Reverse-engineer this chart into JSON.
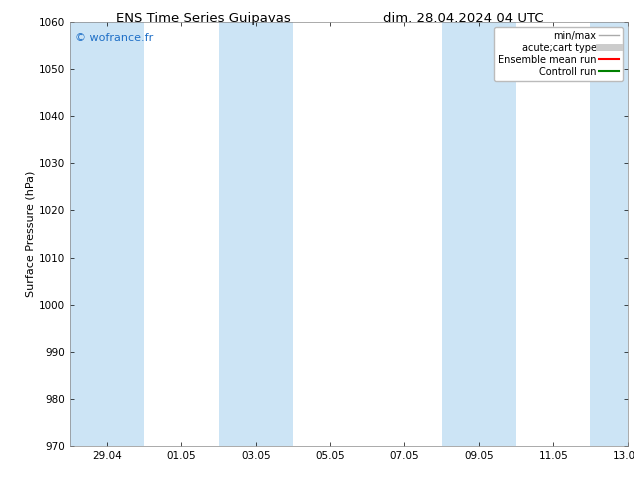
{
  "title_left": "ENS Time Series Guipavas",
  "title_right": "dim. 28.04.2024 04 UTC",
  "ylabel": "Surface Pressure (hPa)",
  "ylim": [
    970,
    1060
  ],
  "yticks": [
    970,
    980,
    990,
    1000,
    1010,
    1020,
    1030,
    1040,
    1050,
    1060
  ],
  "xlim_start": 0.0,
  "xlim_end": 15.0,
  "xtick_labels": [
    "29.04",
    "01.05",
    "03.05",
    "05.05",
    "07.05",
    "09.05",
    "11.05",
    "13.05"
  ],
  "xtick_positions": [
    1.0,
    3.0,
    5.0,
    7.0,
    9.0,
    11.0,
    13.0,
    15.0
  ],
  "shaded_bands": [
    {
      "x_start": 0.0,
      "x_end": 2.0
    },
    {
      "x_start": 4.0,
      "x_end": 6.0
    },
    {
      "x_start": 10.0,
      "x_end": 12.0
    },
    {
      "x_start": 14.0,
      "x_end": 15.0
    }
  ],
  "band_color": "#cce4f5",
  "watermark_text": "© wofrance.fr",
  "watermark_color": "#1e6fc7",
  "bg_color": "#ffffff",
  "plot_bg_color": "#ffffff",
  "legend_items": [
    {
      "label": "min/max",
      "color": "#aaaaaa",
      "lw": 1.0,
      "style": "solid"
    },
    {
      "label": "acute;cart type",
      "color": "#cccccc",
      "lw": 5,
      "style": "solid"
    },
    {
      "label": "Ensemble mean run",
      "color": "#ff0000",
      "lw": 1.5,
      "style": "solid"
    },
    {
      "label": "Controll run",
      "color": "#008000",
      "lw": 1.5,
      "style": "solid"
    }
  ],
  "title_fontsize": 9.5,
  "ylabel_fontsize": 8,
  "tick_fontsize": 7.5,
  "watermark_fontsize": 8,
  "legend_fontsize": 7
}
